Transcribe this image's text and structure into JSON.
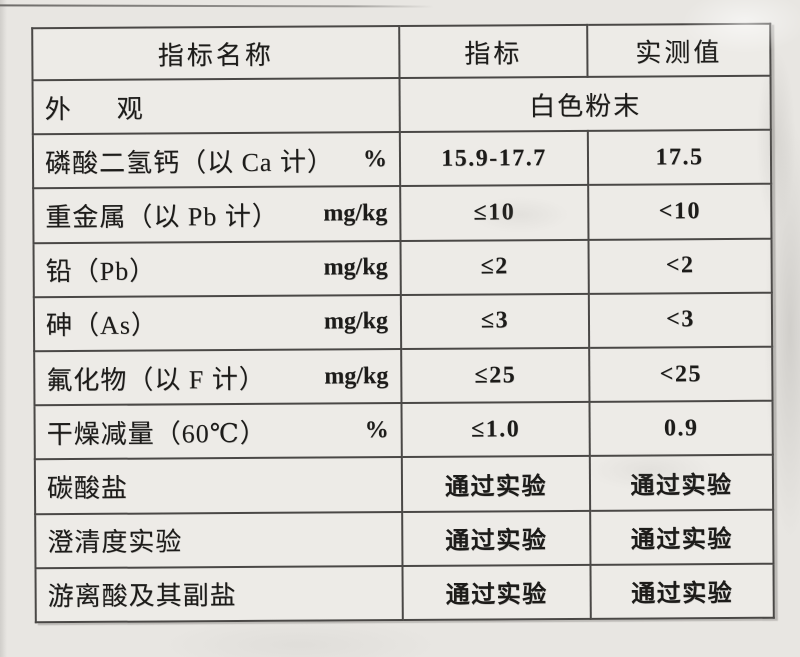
{
  "colors": {
    "paper": "#e8e6e2",
    "cell_background": "#edebe7",
    "grid_line": "#4a4846",
    "ink": "#1d1c1a"
  },
  "table": {
    "headers": [
      "指标名称",
      "指标",
      "实测值"
    ],
    "appearance": {
      "name": "外      观",
      "value": "白色粉末"
    },
    "rows": [
      {
        "name": "磷酸二氢钙（以 Ca 计）",
        "unit": "%",
        "spec": "15.9-17.7",
        "measured": "17.5"
      },
      {
        "name": "重金属（以 Pb 计）",
        "unit": "mg/kg",
        "spec": "≤10",
        "measured": "<10"
      },
      {
        "name": "铅（Pb）",
        "unit": "mg/kg",
        "spec": "≤2",
        "measured": "<2"
      },
      {
        "name": "砷（As）",
        "unit": "mg/kg",
        "spec": "≤3",
        "measured": "<3"
      },
      {
        "name": "氟化物（以 F 计）",
        "unit": "mg/kg",
        "spec": "≤25",
        "measured": "<25"
      },
      {
        "name": "干燥减量（60℃）",
        "unit": "%",
        "spec": "≤1.0",
        "measured": "0.9"
      },
      {
        "name": "碳酸盐",
        "unit": "",
        "spec": "通过实验",
        "measured": "通过实验"
      },
      {
        "name": "澄清度实验",
        "unit": "",
        "spec": "通过实验",
        "measured": "通过实验"
      },
      {
        "name": "游离酸及其副盐",
        "unit": "",
        "spec": "通过实验",
        "measured": "通过实验"
      }
    ]
  }
}
